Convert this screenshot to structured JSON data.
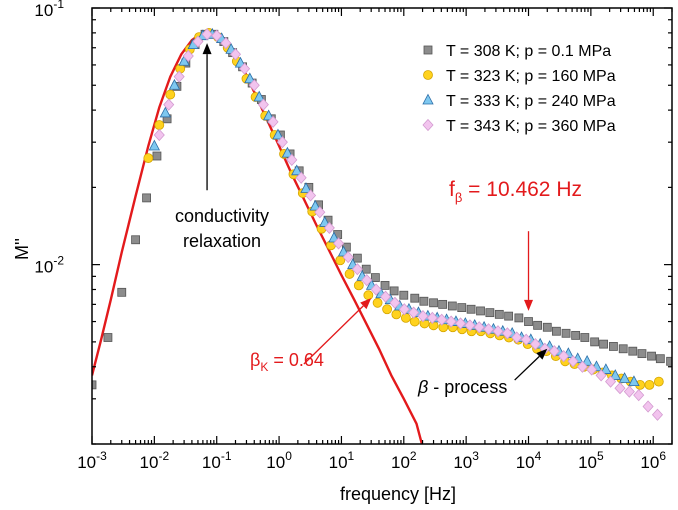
{
  "chart_data": {
    "type": "scatter",
    "title": "",
    "xlabel": "frequency  [Hz]",
    "ylabel": "M''",
    "xscale": "log",
    "yscale": "log",
    "xlim": [
      0.001,
      2000000
    ],
    "ylim": [
      0.002,
      0.1
    ],
    "xticks": [
      {
        "value": 0.001,
        "base": "10",
        "exp": "-3"
      },
      {
        "value": 0.01,
        "base": "10",
        "exp": "-2"
      },
      {
        "value": 0.1,
        "base": "10",
        "exp": "-1"
      },
      {
        "value": 1,
        "base": "10",
        "exp": "0"
      },
      {
        "value": 10,
        "base": "10",
        "exp": "1"
      },
      {
        "value": 100,
        "base": "10",
        "exp": "2"
      },
      {
        "value": 1000,
        "base": "10",
        "exp": "3"
      },
      {
        "value": 10000,
        "base": "10",
        "exp": "4"
      },
      {
        "value": 100000,
        "base": "10",
        "exp": "5"
      },
      {
        "value": 1000000,
        "base": "10",
        "exp": "6"
      }
    ],
    "yticks": [
      {
        "value": 0.01,
        "base": "10",
        "exp": "-2"
      },
      {
        "value": 0.1,
        "base": "10",
        "exp": "-1"
      }
    ],
    "legend_position": "top-right",
    "series": [
      {
        "name": "T = 308 K; p = 0.1 MPa",
        "marker": "square",
        "color": "#8c8c8c",
        "stroke": "#555555",
        "points": [
          [
            0.001,
            0.0034
          ],
          [
            0.0018,
            0.0052
          ],
          [
            0.003,
            0.0078
          ],
          [
            0.005,
            0.0125
          ],
          [
            0.0075,
            0.0182
          ],
          [
            0.011,
            0.0265
          ],
          [
            0.016,
            0.037
          ],
          [
            0.023,
            0.0495
          ],
          [
            0.032,
            0.061
          ],
          [
            0.045,
            0.072
          ],
          [
            0.065,
            0.079
          ],
          [
            0.09,
            0.079
          ],
          [
            0.13,
            0.074
          ],
          [
            0.18,
            0.067
          ],
          [
            0.26,
            0.059
          ],
          [
            0.37,
            0.051
          ],
          [
            0.52,
            0.044
          ],
          [
            0.75,
            0.037
          ],
          [
            1.05,
            0.032
          ],
          [
            1.5,
            0.027
          ],
          [
            2.1,
            0.0232
          ],
          [
            3,
            0.02
          ],
          [
            4.3,
            0.0171
          ],
          [
            6.1,
            0.0149
          ],
          [
            8.7,
            0.0131
          ],
          [
            12,
            0.0117
          ],
          [
            18,
            0.0106
          ],
          [
            25,
            0.0096
          ],
          [
            35,
            0.0089
          ],
          [
            50,
            0.0083
          ],
          [
            70,
            0.0079
          ],
          [
            100,
            0.0076
          ],
          [
            150,
            0.0074
          ],
          [
            210,
            0.0072
          ],
          [
            300,
            0.0071
          ],
          [
            420,
            0.007
          ],
          [
            600,
            0.0069
          ],
          [
            850,
            0.0068
          ],
          [
            1200,
            0.0067
          ],
          [
            1700,
            0.0066
          ],
          [
            2400,
            0.0065
          ],
          [
            3400,
            0.0064
          ],
          [
            4800,
            0.0063
          ],
          [
            7000,
            0.0062
          ],
          [
            10000,
            0.006
          ],
          [
            14000,
            0.0058
          ],
          [
            20000,
            0.0057
          ],
          [
            28000,
            0.0055
          ],
          [
            40000,
            0.0054
          ],
          [
            57000,
            0.0053
          ],
          [
            80000,
            0.0052
          ],
          [
            115000,
            0.005
          ],
          [
            160000,
            0.0049
          ],
          [
            230000,
            0.0048
          ],
          [
            330000,
            0.0047
          ],
          [
            470000,
            0.0046
          ],
          [
            660000,
            0.0045
          ],
          [
            940000,
            0.0044
          ],
          [
            1300000,
            0.0043
          ],
          [
            1900000,
            0.0042
          ]
        ]
      },
      {
        "name": "T = 323 K; p = 160 MPa",
        "marker": "circle",
        "color": "#ffd21e",
        "stroke": "#d4a500",
        "points": [
          [
            0.008,
            0.026
          ],
          [
            0.012,
            0.035
          ],
          [
            0.018,
            0.046
          ],
          [
            0.026,
            0.058
          ],
          [
            0.037,
            0.069
          ],
          [
            0.052,
            0.077
          ],
          [
            0.075,
            0.08
          ],
          [
            0.105,
            0.077
          ],
          [
            0.15,
            0.07
          ],
          [
            0.21,
            0.062
          ],
          [
            0.3,
            0.053
          ],
          [
            0.42,
            0.045
          ],
          [
            0.6,
            0.038
          ],
          [
            0.85,
            0.032
          ],
          [
            1.2,
            0.027
          ],
          [
            1.7,
            0.0225
          ],
          [
            2.4,
            0.019
          ],
          [
            3.4,
            0.0161
          ],
          [
            4.8,
            0.0138
          ],
          [
            6.8,
            0.0119
          ],
          [
            9.6,
            0.0104
          ],
          [
            13.5,
            0.0092
          ],
          [
            19,
            0.0083
          ],
          [
            27,
            0.0076
          ],
          [
            38,
            0.0071
          ],
          [
            54,
            0.0067
          ],
          [
            76,
            0.0064
          ],
          [
            108,
            0.0062
          ],
          [
            150,
            0.006
          ],
          [
            215,
            0.0059
          ],
          [
            300,
            0.0058
          ],
          [
            430,
            0.0057
          ],
          [
            610,
            0.0057
          ],
          [
            860,
            0.0056
          ],
          [
            1220,
            0.0055
          ],
          [
            1720,
            0.0055
          ],
          [
            2440,
            0.0054
          ],
          [
            3440,
            0.0053
          ],
          [
            4860,
            0.0052
          ],
          [
            6870,
            0.0051
          ],
          [
            9700,
            0.0049
          ],
          [
            13700,
            0.0047
          ],
          [
            19400,
            0.0046
          ],
          [
            27400,
            0.0044
          ],
          [
            38700,
            0.0042
          ],
          [
            54700,
            0.0041
          ],
          [
            77300,
            0.004
          ],
          [
            109000,
            0.0039
          ],
          [
            154000,
            0.0038
          ],
          [
            218000,
            0.0037
          ],
          [
            308000,
            0.0036
          ],
          [
            435000,
            0.0035
          ],
          [
            615000,
            0.0034
          ],
          [
            870000,
            0.0034
          ],
          [
            1230000,
            0.0035
          ]
        ]
      },
      {
        "name": "T = 333 K; p = 240 MPa",
        "marker": "triangle",
        "color": "#7ec8f0",
        "stroke": "#2b6ca6",
        "points": [
          [
            0.01,
            0.029
          ],
          [
            0.015,
            0.039
          ],
          [
            0.021,
            0.05
          ],
          [
            0.03,
            0.062
          ],
          [
            0.042,
            0.072
          ],
          [
            0.06,
            0.078
          ],
          [
            0.085,
            0.079
          ],
          [
            0.12,
            0.076
          ],
          [
            0.17,
            0.069
          ],
          [
            0.24,
            0.061
          ],
          [
            0.34,
            0.053
          ],
          [
            0.48,
            0.045
          ],
          [
            0.68,
            0.038
          ],
          [
            0.96,
            0.032
          ],
          [
            1.36,
            0.0272
          ],
          [
            1.92,
            0.0232
          ],
          [
            2.7,
            0.0198
          ],
          [
            3.8,
            0.0169
          ],
          [
            5.4,
            0.0146
          ],
          [
            7.6,
            0.0127
          ],
          [
            10.8,
            0.0112
          ],
          [
            15.2,
            0.01
          ],
          [
            21.5,
            0.009
          ],
          [
            30.4,
            0.0083
          ],
          [
            43,
            0.0077
          ],
          [
            60.7,
            0.0073
          ],
          [
            86,
            0.0069
          ],
          [
            121,
            0.0067
          ],
          [
            172,
            0.0065
          ],
          [
            243,
            0.0063
          ],
          [
            343,
            0.0062
          ],
          [
            485,
            0.0061
          ],
          [
            686,
            0.006
          ],
          [
            970,
            0.0059
          ],
          [
            1370,
            0.0058
          ],
          [
            1940,
            0.0057
          ],
          [
            2740,
            0.0056
          ],
          [
            3870,
            0.0055
          ],
          [
            5470,
            0.0054
          ],
          [
            7730,
            0.0052
          ],
          [
            10900,
            0.0051
          ],
          [
            15400,
            0.0049
          ],
          [
            21800,
            0.0048
          ],
          [
            30800,
            0.0046
          ],
          [
            43500,
            0.0045
          ],
          [
            61500,
            0.0043
          ],
          [
            87000,
            0.0042
          ],
          [
            123000,
            0.004
          ],
          [
            174000,
            0.0039
          ],
          [
            246000,
            0.0037
          ],
          [
            347000,
            0.0036
          ],
          [
            491000,
            0.0035
          ]
        ]
      },
      {
        "name": "T = 343 K; p = 360 MPa",
        "marker": "diamond",
        "color": "#f2c4ee",
        "stroke": "#d39bd0",
        "points": [
          [
            0.012,
            0.032
          ],
          [
            0.017,
            0.042
          ],
          [
            0.025,
            0.054
          ],
          [
            0.035,
            0.065
          ],
          [
            0.05,
            0.074
          ],
          [
            0.07,
            0.079
          ],
          [
            0.1,
            0.078
          ],
          [
            0.14,
            0.073
          ],
          [
            0.2,
            0.066
          ],
          [
            0.28,
            0.058
          ],
          [
            0.4,
            0.05
          ],
          [
            0.56,
            0.042
          ],
          [
            0.8,
            0.036
          ],
          [
            1.13,
            0.03
          ],
          [
            1.6,
            0.0256
          ],
          [
            2.26,
            0.0218
          ],
          [
            3.2,
            0.0186
          ],
          [
            4.5,
            0.016
          ],
          [
            6.4,
            0.0139
          ],
          [
            9,
            0.0121
          ],
          [
            12.8,
            0.0107
          ],
          [
            18,
            0.0096
          ],
          [
            25.5,
            0.0087
          ],
          [
            36,
            0.008
          ],
          [
            51,
            0.0075
          ],
          [
            72,
            0.0071
          ],
          [
            102,
            0.0067
          ],
          [
            144,
            0.0065
          ],
          [
            203,
            0.0063
          ],
          [
            287,
            0.0062
          ],
          [
            406,
            0.0061
          ],
          [
            574,
            0.006
          ],
          [
            812,
            0.0059
          ],
          [
            1150,
            0.0058
          ],
          [
            1620,
            0.0057
          ],
          [
            2290,
            0.0056
          ],
          [
            3240,
            0.0055
          ],
          [
            4580,
            0.0054
          ],
          [
            6480,
            0.0052
          ],
          [
            9160,
            0.0051
          ],
          [
            12900,
            0.0049
          ],
          [
            18300,
            0.0047
          ],
          [
            25900,
            0.0046
          ],
          [
            36600,
            0.0044
          ],
          [
            51800,
            0.0042
          ],
          [
            73200,
            0.004
          ],
          [
            103000,
            0.0039
          ],
          [
            146000,
            0.0037
          ],
          [
            207000,
            0.0035
          ],
          [
            293000,
            0.0033
          ],
          [
            414000,
            0.0032
          ],
          [
            585000,
            0.0031
          ],
          [
            827000,
            0.0028
          ],
          [
            1170000,
            0.0026
          ]
        ]
      }
    ],
    "fit_curve": {
      "color": "#e31a1c",
      "points": [
        [
          0.001,
          0.0037
        ],
        [
          0.0014,
          0.0051
        ],
        [
          0.002,
          0.0073
        ],
        [
          0.003,
          0.0112
        ],
        [
          0.005,
          0.0185
        ],
        [
          0.008,
          0.029
        ],
        [
          0.012,
          0.041
        ],
        [
          0.018,
          0.054
        ],
        [
          0.027,
          0.066
        ],
        [
          0.04,
          0.075
        ],
        [
          0.06,
          0.0805
        ],
        [
          0.08,
          0.0815
        ],
        [
          0.11,
          0.079
        ],
        [
          0.16,
          0.072
        ],
        [
          0.25,
          0.06
        ],
        [
          0.4,
          0.047
        ],
        [
          0.6,
          0.038
        ],
        [
          1,
          0.029
        ],
        [
          1.6,
          0.0225
        ],
        [
          2.5,
          0.018
        ],
        [
          4,
          0.0142
        ],
        [
          6.3,
          0.0114
        ],
        [
          10,
          0.0091
        ],
        [
          16,
          0.0073
        ],
        [
          25,
          0.0059
        ],
        [
          40,
          0.0047
        ],
        [
          63,
          0.0037
        ],
        [
          100,
          0.003
        ],
        [
          160,
          0.0024
        ],
        [
          195,
          0.002
        ]
      ]
    },
    "annotations": [
      {
        "id": "conductivity",
        "lines": [
          "conductivity",
          "relaxation"
        ],
        "color": "#000000",
        "arrow_tail": [
          0.07,
          0.0195
        ],
        "arrow_head": [
          0.07,
          0.073
        ]
      },
      {
        "id": "beta-process",
        "symbol": "β",
        "text": " - process",
        "color": "#000000",
        "arrow_tail": [
          6000,
          0.00355
        ],
        "arrow_head": [
          20000,
          0.0047
        ]
      },
      {
        "id": "beta-k",
        "symbol": "β",
        "subscript": "K",
        "text": " = 0.64",
        "color": "#e31a1c",
        "arrow_tail": [
          2.5,
          0.0041
        ],
        "arrow_head": [
          30,
          0.0074
        ]
      },
      {
        "id": "f-beta",
        "symbol": "f",
        "subscript": "β",
        "text": " = 10.462 Hz",
        "color": "#e31a1c",
        "arrow_tail": [
          10000,
          0.0135
        ],
        "arrow_head": [
          10000,
          0.0066
        ]
      }
    ]
  }
}
